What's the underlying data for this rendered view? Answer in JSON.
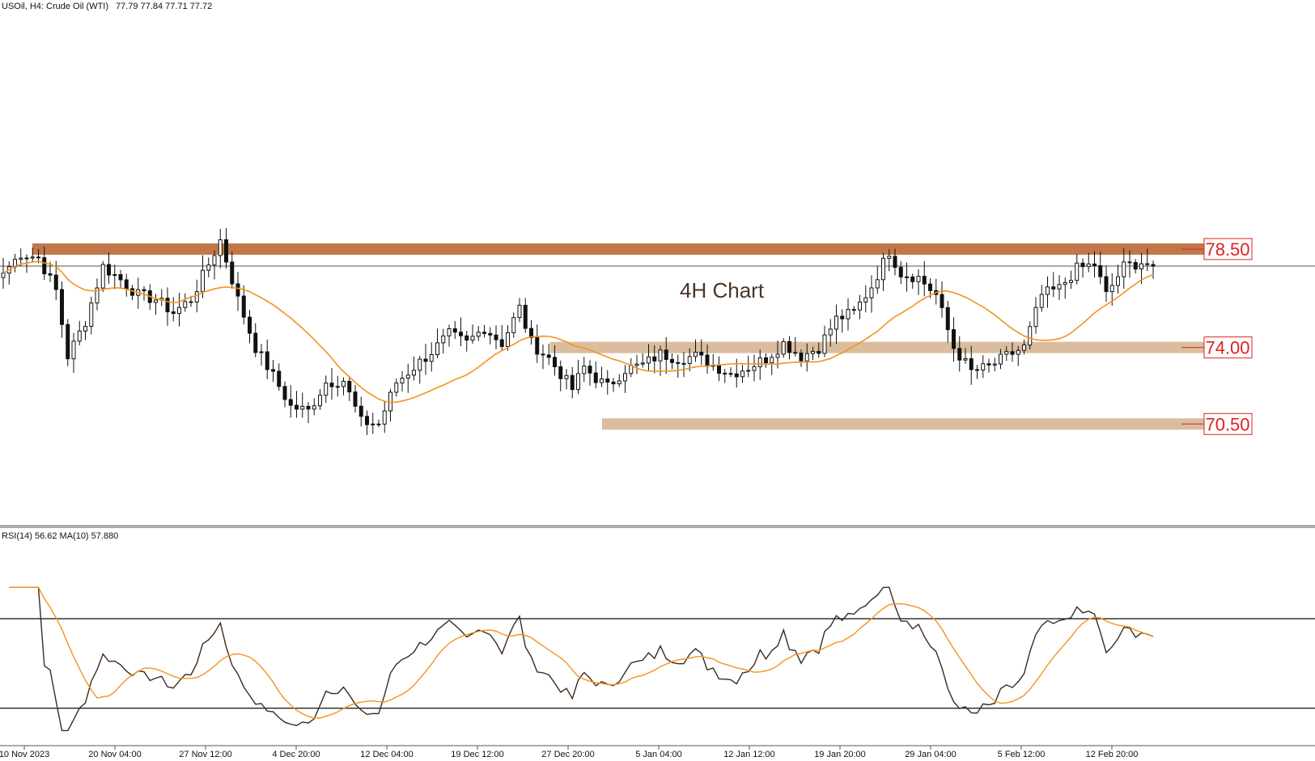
{
  "header": {
    "symbol": "USOil, H4:  Crude Oil (WTI)",
    "ohlc": "77.79 77.84 77.71 77.72"
  },
  "annotation": {
    "chart_label": "4H Chart"
  },
  "levels": [
    {
      "value": 78.5,
      "label": "78.50",
      "color": "#c0784a",
      "role": "resistance"
    },
    {
      "value": 74.0,
      "label": "74.00",
      "color": "#d9bd9e",
      "role": "support"
    },
    {
      "value": 70.5,
      "label": "70.50",
      "color": "#d9bd9e",
      "role": "support"
    }
  ],
  "current_price": 77.72,
  "rsi": {
    "header": "RSI(14) 56.62 MA(10) 57.880",
    "upper": 70,
    "lower": 30
  },
  "colors": {
    "candle": "#111111",
    "ma": "#f5921e",
    "rsi_line": "#3c2a1e",
    "rsi_ma": "#f5921e",
    "label_border": "#e02020",
    "label_text": "#e02020",
    "annotation_text": "#4a3526"
  },
  "chart_data": {
    "type": "candlestick",
    "title": "",
    "xlabel": "",
    "ylabel": "",
    "x_ticks": [
      "10 Nov 2023",
      "20 Nov 04:00",
      "27 Nov 12:00",
      "4 Dec 20:00",
      "12 Dec 04:00",
      "19 Dec 12:00",
      "27 Dec 20:00",
      "5 Jan 04:00",
      "12 Jan 12:00",
      "19 Jan 20:00",
      "29 Jan 04:00",
      "5 Feb 12:00",
      "12 Feb 20:00"
    ],
    "ylim": [
      66.0,
      89.0
    ],
    "price_anchors": [
      [
        0,
        77.4
      ],
      [
        3,
        78.3
      ],
      [
        6,
        78.1
      ],
      [
        9,
        76.6
      ],
      [
        11,
        73.6
      ],
      [
        14,
        75.2
      ],
      [
        17,
        77.7
      ],
      [
        20,
        77.1
      ],
      [
        23,
        76.4
      ],
      [
        26,
        76.2
      ],
      [
        29,
        75.6
      ],
      [
        32,
        76.2
      ],
      [
        35,
        77.8
      ],
      [
        37,
        78.9
      ],
      [
        40,
        76.2
      ],
      [
        43,
        74.0
      ],
      [
        46,
        72.7
      ],
      [
        49,
        71.3
      ],
      [
        52,
        71.1
      ],
      [
        55,
        72.4
      ],
      [
        58,
        72.5
      ],
      [
        61,
        70.6
      ],
      [
        64,
        70.5
      ],
      [
        67,
        72.4
      ],
      [
        70,
        73.1
      ],
      [
        73,
        73.8
      ],
      [
        76,
        74.6
      ],
      [
        79,
        74.2
      ],
      [
        82,
        74.9
      ],
      [
        85,
        74.2
      ],
      [
        88,
        75.8
      ],
      [
        90,
        74.2
      ],
      [
        93,
        73.5
      ],
      [
        95,
        72.8
      ],
      [
        97,
        72.1
      ],
      [
        99,
        73.1
      ],
      [
        101,
        72.6
      ],
      [
        103,
        72.2
      ],
      [
        106,
        73.0
      ],
      [
        109,
        73.2
      ],
      [
        112,
        73.7
      ],
      [
        115,
        73.5
      ],
      [
        118,
        73.6
      ],
      [
        121,
        73.2
      ],
      [
        124,
        72.8
      ],
      [
        127,
        73.1
      ],
      [
        130,
        73.5
      ],
      [
        133,
        74.2
      ],
      [
        136,
        73.6
      ],
      [
        139,
        74.0
      ],
      [
        142,
        75.3
      ],
      [
        145,
        75.6
      ],
      [
        148,
        76.8
      ],
      [
        151,
        78.4
      ],
      [
        153,
        77.4
      ],
      [
        156,
        77.2
      ],
      [
        159,
        76.4
      ],
      [
        162,
        74.0
      ],
      [
        165,
        72.9
      ],
      [
        168,
        73.1
      ],
      [
        171,
        73.6
      ],
      [
        174,
        74.0
      ],
      [
        177,
        76.4
      ],
      [
        180,
        76.7
      ],
      [
        183,
        77.6
      ],
      [
        186,
        77.8
      ],
      [
        188,
        76.4
      ],
      [
        191,
        77.7
      ],
      [
        194,
        77.9
      ],
      [
        196,
        77.72
      ]
    ],
    "ma_period": 20,
    "rsi_period": 14,
    "rsi_ma_period": 10,
    "rsi_ylim": [
      14,
      100
    ],
    "n_bars": 197
  }
}
